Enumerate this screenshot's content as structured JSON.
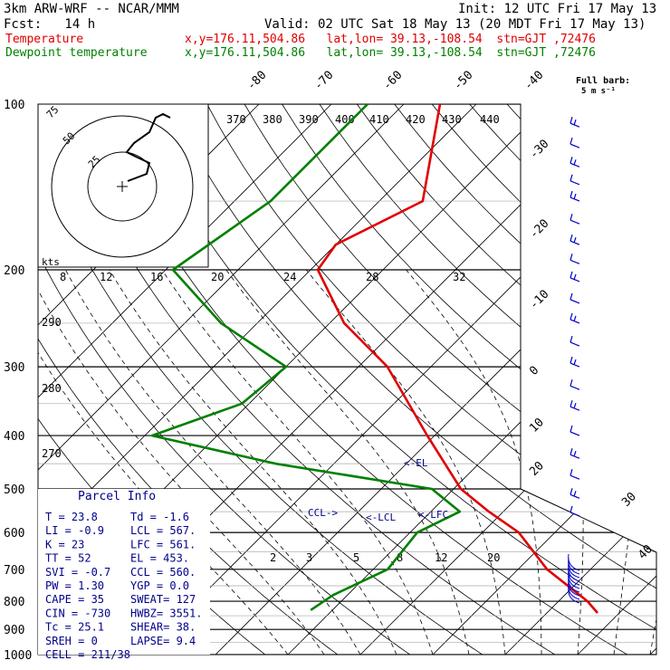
{
  "header": {
    "model": "3km ARW-WRF -- NCAR/MMM",
    "init": "Init: 12 UTC Fri 17 May 13",
    "fcst": "Fcst:   14 h",
    "valid": "Valid: 02 UTC Sat 18 May 13 (20 MDT Fri 17 May 13)",
    "series": [
      {
        "label": "Temperature",
        "info": "x,y=176.11,504.86   lat,lon= 39.13,-108.54  stn=GJT ,72476",
        "color": "#e00000"
      },
      {
        "label": "Dewpoint temperature",
        "info": "x,y=176.11,504.86   lat,lon= 39.13,-108.54  stn=GJT ,72476",
        "color": "#008000"
      }
    ]
  },
  "chart_data": {
    "type": "line",
    "pressure_ticks": [
      "100",
      "200",
      "300",
      "400",
      "500",
      "600",
      "700",
      "800",
      "900",
      "1000"
    ],
    "pressure_values": [
      100,
      200,
      300,
      400,
      500,
      600,
      700,
      800,
      900,
      1000
    ],
    "ylim": [
      1000,
      100
    ],
    "temperature_ticks": [
      "-80",
      "-70",
      "-60",
      "-50",
      "-40",
      "-30",
      "-20",
      "-10",
      "0",
      "10",
      "20",
      "30",
      "40"
    ],
    "theta_ticks": [
      "370",
      "380",
      "390",
      "400",
      "410",
      "420",
      "430",
      "440"
    ],
    "theta_side_ticks": [
      "290",
      "280",
      "270"
    ],
    "mixing_ratio_ticks": [
      "8",
      "12",
      "16",
      "20",
      "24",
      "28",
      "32"
    ],
    "mixing_ratio_low_ticks": [
      "2",
      "3",
      "5",
      "8",
      "12",
      "20"
    ],
    "series": [
      {
        "name": "Temperature",
        "color": "#e00000",
        "points": [
          [
            100,
            -65
          ],
          [
            150,
            -54
          ],
          [
            180,
            -60
          ],
          [
            200,
            -59
          ],
          [
            250,
            -48
          ],
          [
            300,
            -36
          ],
          [
            400,
            -21
          ],
          [
            500,
            -9
          ],
          [
            550,
            -2
          ],
          [
            600,
            5
          ],
          [
            700,
            14
          ],
          [
            800,
            24
          ],
          [
            840,
            27
          ]
        ]
      },
      {
        "name": "Dewpoint temperature",
        "color": "#008000",
        "points": [
          [
            100,
            -75
          ],
          [
            150,
            -75
          ],
          [
            200,
            -79
          ],
          [
            250,
            -65
          ],
          [
            300,
            -50
          ],
          [
            350,
            -51
          ],
          [
            400,
            -59
          ],
          [
            450,
            -38
          ],
          [
            500,
            -13
          ],
          [
            550,
            -6
          ],
          [
            600,
            -9
          ],
          [
            700,
            -8
          ],
          [
            780,
            -12
          ],
          [
            830,
            -13
          ]
        ]
      }
    ],
    "level_labels": [
      "EL",
      "LFC",
      "LCL",
      "CCL"
    ],
    "hodograph": {
      "units": "kts",
      "ring_labels": [
        "75",
        "50",
        "25"
      ]
    },
    "wind_barb_label": "Full barb:",
    "wind_barb_units": "5 m s⁻¹"
  },
  "parcel_info": {
    "title": "Parcel Info",
    "rows": [
      [
        "T    =   23.8",
        "Td  =  -1.6"
      ],
      [
        "LI   =   -0.9",
        "LCL =  567."
      ],
      [
        "K    =     23",
        "LFC =  561."
      ],
      [
        "TT   =     52",
        "EL  =  453."
      ],
      [
        "SVI  =   -0.7",
        "CCL =  560."
      ],
      [
        "PW   =   1.30",
        "YGP =   0.0"
      ],
      [
        "CAPE =     35",
        "SWEAT=  127"
      ],
      [
        "CIN  =   -730",
        "HWBZ= 3551."
      ],
      [
        "Tc   =   25.1",
        "SHEAR=  38."
      ],
      [
        "SREH =      0",
        "LAPSE=  9.4"
      ],
      [
        "CELL =  211/38",
        ""
      ]
    ]
  }
}
